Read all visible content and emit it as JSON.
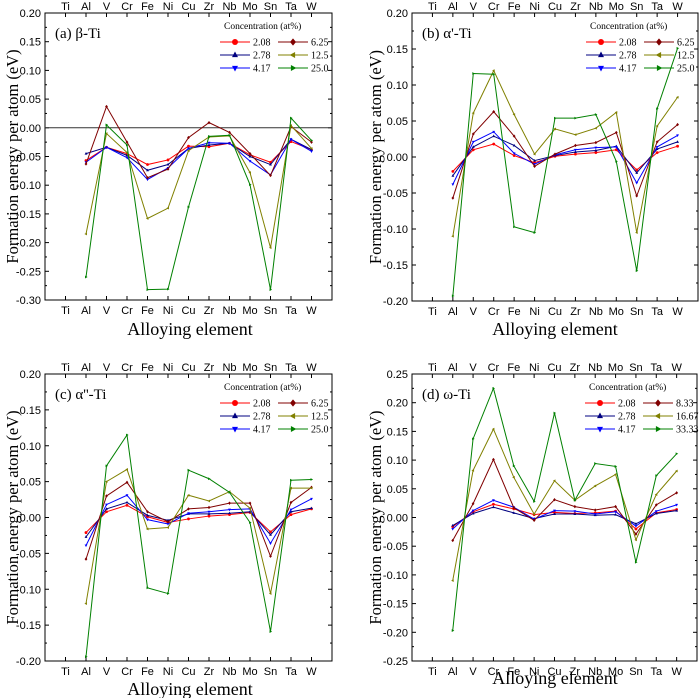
{
  "chart_data": [
    {
      "type": "line",
      "panel_label": "(a) β-Ti",
      "xlabel": "Alloying element",
      "ylabel": "Formation energy per atom (eV)",
      "categories": [
        "Ti",
        "Al",
        "V",
        "Cr",
        "Fe",
        "Ni",
        "Cu",
        "Zr",
        "Nb",
        "Mo",
        "Sn",
        "Ta",
        "W"
      ],
      "ylim": [
        -0.3,
        0.2
      ],
      "yticks": [
        "0.20",
        "0.15",
        "0.10",
        "0.05",
        "0.00",
        "-0.05",
        "-0.10",
        "-0.15",
        "-0.20",
        "-0.25",
        "-0.30"
      ],
      "zero_line": true,
      "legend_title": "Concentration (at%)",
      "legend_position": "top-right",
      "series": [
        {
          "name": "2.08",
          "color": "#ff0000",
          "marker": "circle",
          "values": [
            null,
            -0.057,
            -0.034,
            -0.045,
            -0.064,
            -0.056,
            -0.032,
            -0.033,
            -0.027,
            -0.047,
            -0.06,
            -0.024,
            -0.038
          ]
        },
        {
          "name": "2.78",
          "color": "#000080",
          "marker": "triangle-up",
          "values": [
            null,
            -0.045,
            -0.034,
            -0.048,
            -0.074,
            -0.064,
            -0.036,
            -0.03,
            -0.027,
            -0.05,
            -0.064,
            -0.02,
            -0.038
          ]
        },
        {
          "name": "4.17",
          "color": "#0000ff",
          "marker": "triangle-down",
          "values": [
            null,
            -0.06,
            -0.034,
            -0.052,
            -0.09,
            -0.07,
            -0.036,
            -0.026,
            -0.027,
            -0.058,
            -0.082,
            -0.02,
            -0.041
          ]
        },
        {
          "name": "6.25",
          "color": "#800000",
          "marker": "diamond",
          "values": [
            null,
            -0.063,
            0.037,
            -0.025,
            -0.087,
            -0.072,
            -0.017,
            0.009,
            -0.008,
            -0.045,
            -0.083,
            0.002,
            -0.025
          ]
        },
        {
          "name": "12.5",
          "color": "#808000",
          "marker": "triangle-left",
          "values": [
            null,
            -0.185,
            -0.01,
            -0.043,
            -0.158,
            -0.14,
            -0.04,
            -0.016,
            -0.014,
            -0.078,
            -0.209,
            0.004,
            -0.036
          ]
        },
        {
          "name": "25.0",
          "color": "#008000",
          "marker": "triangle-right",
          "values": [
            null,
            -0.26,
            0.005,
            -0.03,
            -0.282,
            -0.281,
            -0.138,
            -0.015,
            -0.013,
            -0.099,
            -0.282,
            0.017,
            -0.022
          ]
        }
      ]
    },
    {
      "type": "line",
      "panel_label": "(b) α'-Ti",
      "xlabel": "Alloying element",
      "ylabel": "Formation energy per atom (eV)",
      "categories": [
        "Ti",
        "Al",
        "V",
        "Cr",
        "Fe",
        "Ni",
        "Cu",
        "Zr",
        "Nb",
        "Mo",
        "Sn",
        "Ta",
        "W"
      ],
      "ylim": [
        -0.2,
        0.2
      ],
      "yticks": [
        "0.20",
        "0.15",
        "0.10",
        "0.05",
        "0.00",
        "-0.05",
        "-0.10",
        "-0.15",
        "-0.20"
      ],
      "zero_line": false,
      "legend_title": "Concentration (at%)",
      "legend_position": "top-right",
      "series": [
        {
          "name": "2.08",
          "color": "#ff0000",
          "marker": "circle",
          "values": [
            null,
            -0.02,
            0.01,
            0.018,
            0.002,
            -0.008,
            0.001,
            0.004,
            0.006,
            0.01,
            -0.018,
            0.006,
            0.015
          ]
        },
        {
          "name": "2.78",
          "color": "#000080",
          "marker": "triangle-up",
          "values": [
            null,
            -0.026,
            0.014,
            0.029,
            0.016,
            -0.005,
            0.002,
            0.007,
            0.009,
            0.015,
            -0.022,
            0.011,
            0.021
          ]
        },
        {
          "name": "4.17",
          "color": "#0000ff",
          "marker": "triangle-down",
          "values": [
            null,
            -0.038,
            0.021,
            0.035,
            0.005,
            -0.01,
            0.003,
            0.01,
            0.013,
            0.014,
            -0.036,
            0.014,
            0.03
          ]
        },
        {
          "name": "6.25",
          "color": "#800000",
          "marker": "diamond",
          "values": [
            null,
            -0.057,
            0.032,
            0.063,
            0.029,
            -0.013,
            0.004,
            0.016,
            0.02,
            0.034,
            -0.054,
            0.021,
            0.045
          ]
        },
        {
          "name": "12.5",
          "color": "#808000",
          "marker": "triangle-left",
          "values": [
            null,
            -0.11,
            0.061,
            0.12,
            0.059,
            0.004,
            0.039,
            0.031,
            0.04,
            0.062,
            -0.105,
            0.043,
            0.083
          ]
        },
        {
          "name": "25.0",
          "color": "#008000",
          "marker": "triangle-right",
          "values": [
            null,
            -0.193,
            0.116,
            0.115,
            -0.097,
            -0.105,
            0.054,
            0.054,
            0.059,
            -0.006,
            -0.158,
            0.067,
            0.151
          ]
        }
      ]
    },
    {
      "type": "line",
      "panel_label": "(c) α''-Ti",
      "xlabel": "Alloying element",
      "ylabel": "Formation energy per atom (eV)",
      "categories": [
        "Ti",
        "Al",
        "V",
        "Cr",
        "Fe",
        "Ni",
        "Cu",
        "Zr",
        "Nb",
        "Mo",
        "Sn",
        "Ta",
        "W"
      ],
      "ylim": [
        -0.2,
        0.2
      ],
      "yticks": [
        "0.20",
        "0.15",
        "0.10",
        "0.05",
        "0.00",
        "-0.05",
        "-0.10",
        "-0.15",
        "-0.20"
      ],
      "zero_line": false,
      "legend_title": "Concentration (at%)",
      "legend_position": "top-right",
      "series": [
        {
          "name": "2.08",
          "color": "#ff0000",
          "marker": "circle",
          "values": [
            null,
            -0.021,
            0.008,
            0.017,
            0.001,
            -0.007,
            -0.002,
            0.002,
            0.004,
            0.007,
            -0.02,
            0.004,
            0.012
          ]
        },
        {
          "name": "2.78",
          "color": "#000080",
          "marker": "triangle-up",
          "values": [
            null,
            -0.027,
            0.012,
            0.021,
            0.003,
            -0.004,
            0.005,
            0.005,
            0.006,
            0.008,
            -0.024,
            0.008,
            0.013
          ]
        },
        {
          "name": "4.17",
          "color": "#0000ff",
          "marker": "triangle-down",
          "values": [
            null,
            -0.039,
            0.018,
            0.031,
            -0.003,
            -0.009,
            0.006,
            0.008,
            0.011,
            0.012,
            -0.036,
            0.011,
            0.026
          ]
        },
        {
          "name": "6.25",
          "color": "#800000",
          "marker": "diamond",
          "values": [
            null,
            -0.058,
            0.03,
            0.049,
            0.008,
            -0.006,
            0.012,
            0.014,
            0.02,
            0.02,
            -0.054,
            0.021,
            0.042
          ]
        },
        {
          "name": "12.5",
          "color": "#808000",
          "marker": "triangle-left",
          "values": [
            null,
            -0.12,
            0.05,
            0.067,
            -0.016,
            -0.014,
            0.031,
            0.023,
            0.036,
            0.013,
            -0.106,
            0.041,
            0.041
          ]
        },
        {
          "name": "25.0",
          "color": "#008000",
          "marker": "triangle-right",
          "values": [
            null,
            -0.194,
            0.072,
            0.115,
            -0.098,
            -0.106,
            0.066,
            0.054,
            0.035,
            -0.007,
            -0.159,
            0.052,
            0.053
          ]
        }
      ]
    },
    {
      "type": "line",
      "panel_label": "(d) ω-Ti",
      "xlabel": "Alloying element",
      "ylabel": "Formation energy per atom (eV)",
      "categories": [
        "Ti",
        "Al",
        "V",
        "Cr",
        "Fe",
        "Ni",
        "Cu",
        "Zr",
        "Nb",
        "Mo",
        "Sn",
        "Ta",
        "W"
      ],
      "ylim": [
        -0.25,
        0.25
      ],
      "yticks": [
        "0.25",
        "0.20",
        "0.15",
        "0.10",
        "0.05",
        "0.00",
        "-0.05",
        "-0.10",
        "-0.15",
        "-0.20",
        "-0.25"
      ],
      "zero_line": false,
      "legend_title": "Concentration (at%)",
      "legend_position": "top-right",
      "series": [
        {
          "name": "2.08",
          "color": "#ff0000",
          "marker": "circle",
          "values": [
            null,
            -0.016,
            0.01,
            0.023,
            0.015,
            0.005,
            0.009,
            0.007,
            0.008,
            0.011,
            -0.02,
            0.008,
            0.014
          ]
        },
        {
          "name": "2.78",
          "color": "#000080",
          "marker": "triangle-up",
          "values": [
            null,
            -0.014,
            0.007,
            0.018,
            0.008,
            -0.002,
            0.006,
            0.006,
            0.004,
            0.005,
            -0.011,
            0.007,
            0.012
          ]
        },
        {
          "name": "4.17",
          "color": "#0000ff",
          "marker": "triangle-down",
          "values": [
            null,
            -0.02,
            0.012,
            0.03,
            0.018,
            -0.003,
            0.012,
            0.011,
            0.006,
            0.01,
            -0.015,
            0.011,
            0.022
          ]
        },
        {
          "name": "8.33",
          "color": "#800000",
          "marker": "diamond",
          "values": [
            null,
            -0.04,
            0.024,
            0.101,
            0.017,
            -0.005,
            0.031,
            0.019,
            0.013,
            0.019,
            -0.029,
            0.022,
            0.043
          ]
        },
        {
          "name": "16.67",
          "color": "#808000",
          "marker": "triangle-left",
          "values": [
            null,
            -0.11,
            0.082,
            0.154,
            0.07,
            0.006,
            0.064,
            0.03,
            0.055,
            0.075,
            -0.039,
            0.04,
            0.081
          ]
        },
        {
          "name": "33.33",
          "color": "#008000",
          "marker": "triangle-right",
          "values": [
            null,
            -0.197,
            0.137,
            0.225,
            0.09,
            0.028,
            0.182,
            0.03,
            0.094,
            0.089,
            -0.078,
            0.073,
            0.111
          ]
        }
      ]
    }
  ]
}
